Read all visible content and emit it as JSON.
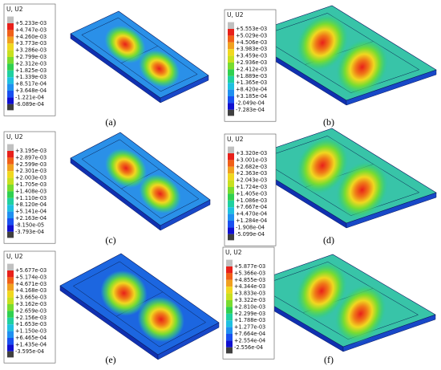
{
  "panels": [
    {
      "label": "(a)",
      "legend_title": "U, U2",
      "values": [
        "+5.233e-03",
        "+4.747e-03",
        "+4.260e-03",
        "+3.773e-03",
        "+3.286e-03",
        "+2.799e-03",
        "+2.312e-03",
        "+1.825e-03",
        "+1.339e-03",
        "+8.517e-04",
        "+3.648e-04",
        "-1.221e-04",
        "-6.089e-04"
      ]
    },
    {
      "label": "(b)",
      "legend_title": "U, U2",
      "values": [
        "+5.553e-03",
        "+5.029e-03",
        "+4.506e-03",
        "+3.983e-03",
        "+3.459e-03",
        "+2.936e-03",
        "+2.412e-03",
        "+1.889e-03",
        "+1.365e-03",
        "+8.420e-04",
        "+3.185e-04",
        "-2.049e-04",
        "-7.283e-04"
      ]
    },
    {
      "label": "(c)",
      "legend_title": "U, U2",
      "values": [
        "+3.195e-03",
        "+2.897e-03",
        "+2.599e-03",
        "+2.301e-03",
        "+2.003e-03",
        "+1.705e-03",
        "+1.408e-03",
        "+1.110e-03",
        "+8.120e-04",
        "+5.141e-04",
        "+2.163e-04",
        "-8.150e-05",
        "-3.793e-04"
      ]
    },
    {
      "label": "(d)",
      "legend_title": "U, U2",
      "values": [
        "+3.320e-03",
        "+3.001e-03",
        "+2.682e-03",
        "+2.363e-03",
        "+2.043e-03",
        "+1.724e-03",
        "+1.405e-03",
        "+1.086e-03",
        "+7.667e-04",
        "+4.470e-04",
        "+1.284e-04",
        "-1.908e-04",
        "-5.099e-04"
      ]
    },
    {
      "label": "(e)",
      "legend_title": "U, U2",
      "values": [
        "+5.677e-03",
        "+5.174e-03",
        "+4.671e-03",
        "+4.168e-03",
        "+3.665e-03",
        "+3.162e-03",
        "+2.659e-03",
        "+2.156e-03",
        "+1.653e-03",
        "+1.150e-03",
        "+6.465e-04",
        "+1.435e-04",
        "-3.595e-04"
      ]
    },
    {
      "label": "(f)",
      "legend_title": "U, U2",
      "values": [
        "+5.877e-03",
        "+5.366e-03",
        "+4.855e-03",
        "+4.344e-03",
        "+3.833e-03",
        "+3.322e-03",
        "+2.810e-03",
        "+2.299e-03",
        "+1.788e-03",
        "+1.277e-03",
        "+7.664e-04",
        "+2.554e-04",
        "-2.556e-04"
      ]
    }
  ]
}
